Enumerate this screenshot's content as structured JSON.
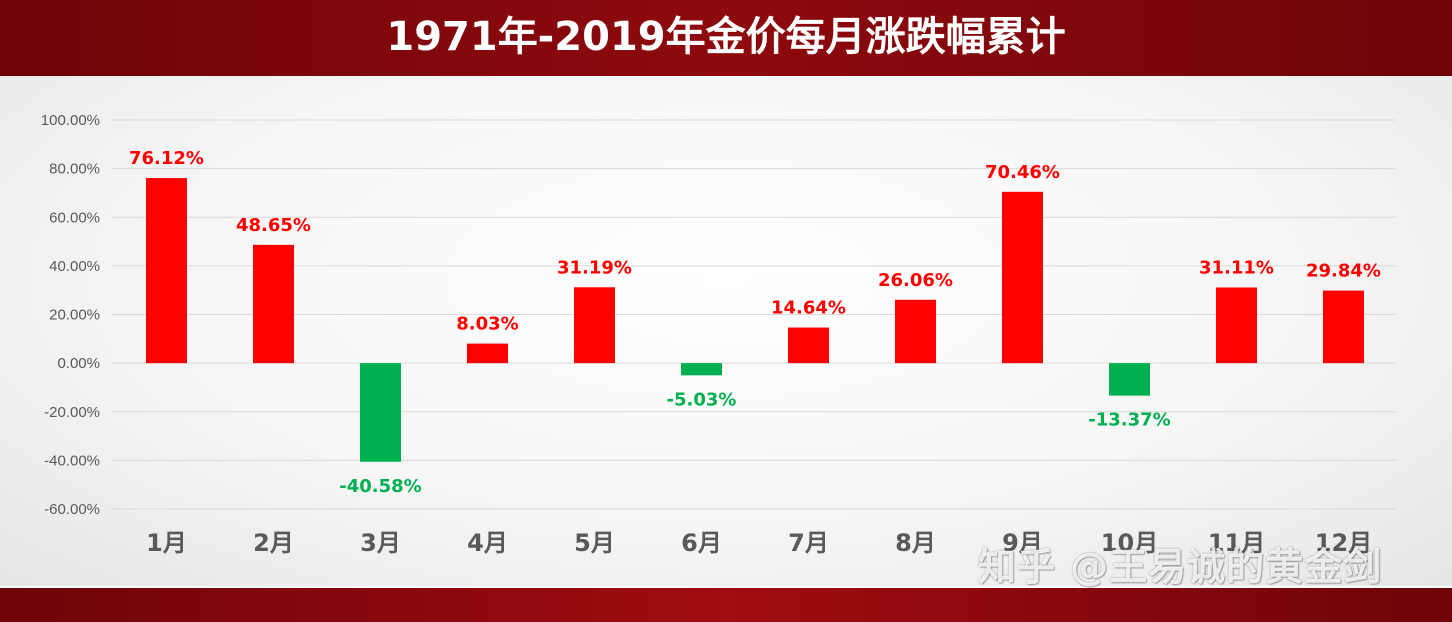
{
  "chart_data": {
    "type": "bar",
    "title": "1971年-2019年金价每月涨跌幅累计",
    "categories": [
      "1月",
      "2月",
      "3月",
      "4月",
      "5月",
      "6月",
      "7月",
      "8月",
      "9月",
      "10月",
      "11月",
      "12月"
    ],
    "values": [
      76.12,
      48.65,
      -40.58,
      8.03,
      31.19,
      -5.03,
      14.64,
      26.06,
      70.46,
      -13.37,
      31.11,
      29.84
    ],
    "value_labels": [
      "76.12%",
      "48.65%",
      "-40.58%",
      "8.03%",
      "31.19%",
      "-5.03%",
      "14.64%",
      "26.06%",
      "70.46%",
      "-13.37%",
      "31.11%",
      "29.84%"
    ],
    "y_ticks": [
      "100.00%",
      "80.00%",
      "60.00%",
      "40.00%",
      "20.00%",
      "0.00%",
      "-20.00%",
      "-40.00%",
      "-60.00%"
    ],
    "y_tick_values": [
      100,
      80,
      60,
      40,
      20,
      0,
      -20,
      -40,
      -60
    ],
    "ylim": [
      -60,
      100
    ],
    "grid": true,
    "colors": {
      "positive": "#ff0000",
      "negative": "#00b050"
    }
  },
  "watermark": "知乎 @王易诚的黄金剑"
}
